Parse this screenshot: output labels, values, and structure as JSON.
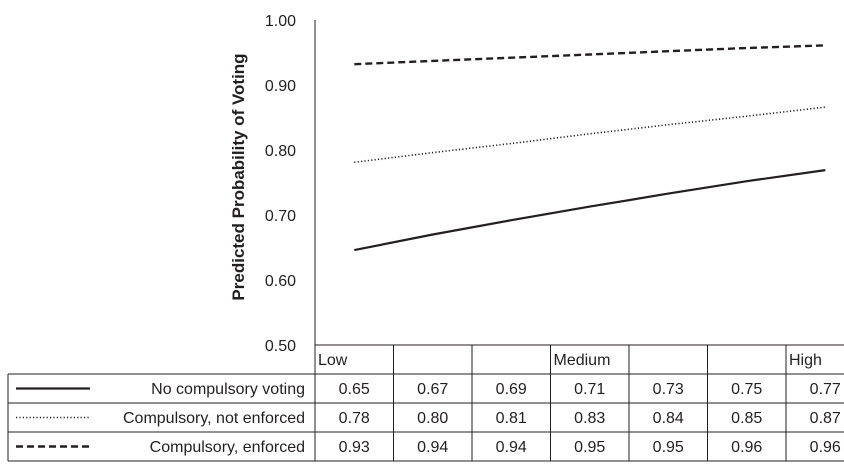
{
  "chart_data": {
    "type": "line",
    "ylabel": "Predicted Probability of Voting",
    "ylim": [
      0.5,
      1.0
    ],
    "yticks": [
      "0.50",
      "0.60",
      "0.70",
      "0.80",
      "0.90",
      "1.00"
    ],
    "categories": [
      "Low",
      "",
      "",
      "Medium",
      "",
      "",
      "High"
    ],
    "series": [
      {
        "name": "No compulsory voting",
        "style": "solid",
        "color": "#231f20",
        "values": [
          0.646,
          0.67,
          0.692,
          0.713,
          0.733,
          0.752,
          0.769
        ],
        "labels": [
          "0.65",
          "0.67",
          "0.69",
          "0.71",
          "0.73",
          "0.75",
          "0.77"
        ]
      },
      {
        "name": "Compulsory, not enforced",
        "style": "dotted",
        "color": "#231f20",
        "values": [
          0.781,
          0.796,
          0.81,
          0.825,
          0.839,
          0.852,
          0.866
        ],
        "labels": [
          "0.78",
          "0.80",
          "0.81",
          "0.83",
          "0.84",
          "0.85",
          "0.87"
        ]
      },
      {
        "name": "Compulsory, enforced",
        "style": "dashed",
        "color": "#231f20",
        "values": [
          0.932,
          0.937,
          0.942,
          0.947,
          0.952,
          0.957,
          0.961
        ],
        "labels": [
          "0.93",
          "0.94",
          "0.94",
          "0.95",
          "0.95",
          "0.96",
          "0.96"
        ]
      }
    ],
    "grid": false,
    "legend": "data table below chart"
  }
}
